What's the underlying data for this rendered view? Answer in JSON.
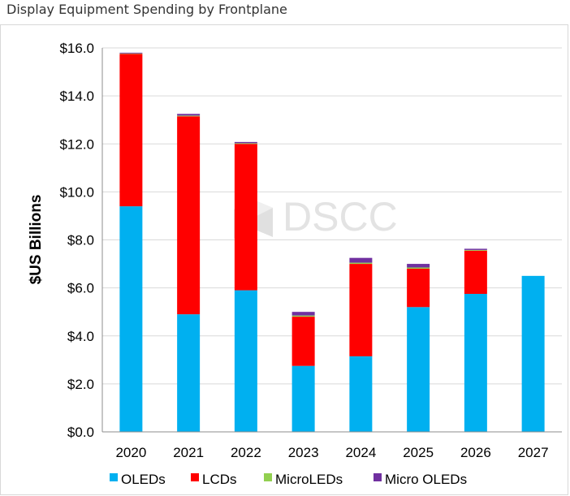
{
  "page": {
    "title": "Display Equipment Spending by Frontplane"
  },
  "watermark": {
    "text": "DSCC",
    "icon": "dscc-logo-icon"
  },
  "colors": {
    "OLEDs": "#00b0f0",
    "LCDs": "#ff0000",
    "MicroLEDs": "#92d050",
    "Micro OLEDs": "#7030a0",
    "gridline": "#d9d9d9",
    "axis": "#8c8c8c"
  },
  "chart_data": {
    "type": "bar",
    "stacked": true,
    "title": "Display Equipment Spending by Frontplane",
    "xlabel": "",
    "ylabel": "$US Billions",
    "ylim": [
      0,
      16
    ],
    "yticks": [
      0,
      2,
      4,
      6,
      8,
      10,
      12,
      14,
      16
    ],
    "ytick_labels": [
      "$0.0",
      "$2.0",
      "$4.0",
      "$6.0",
      "$8.0",
      "$10.0",
      "$12.0",
      "$14.0",
      "$16.0"
    ],
    "grid": true,
    "legend_position": "bottom",
    "categories": [
      "2020",
      "2021",
      "2022",
      "2023",
      "2024",
      "2025",
      "2026",
      "2027"
    ],
    "series": [
      {
        "name": "OLEDs",
        "values": [
          9.4,
          4.9,
          5.9,
          2.75,
          3.15,
          5.2,
          5.75,
          6.5
        ]
      },
      {
        "name": "LCDs",
        "values": [
          6.35,
          8.25,
          6.1,
          2.05,
          3.85,
          1.6,
          1.8,
          0.0
        ]
      },
      {
        "name": "MicroLEDs",
        "values": [
          0.02,
          0.03,
          0.03,
          0.05,
          0.05,
          0.05,
          0.03,
          0.0
        ]
      },
      {
        "name": "Micro OLEDs",
        "values": [
          0.03,
          0.07,
          0.05,
          0.15,
          0.2,
          0.15,
          0.05,
          0.0
        ]
      }
    ]
  }
}
